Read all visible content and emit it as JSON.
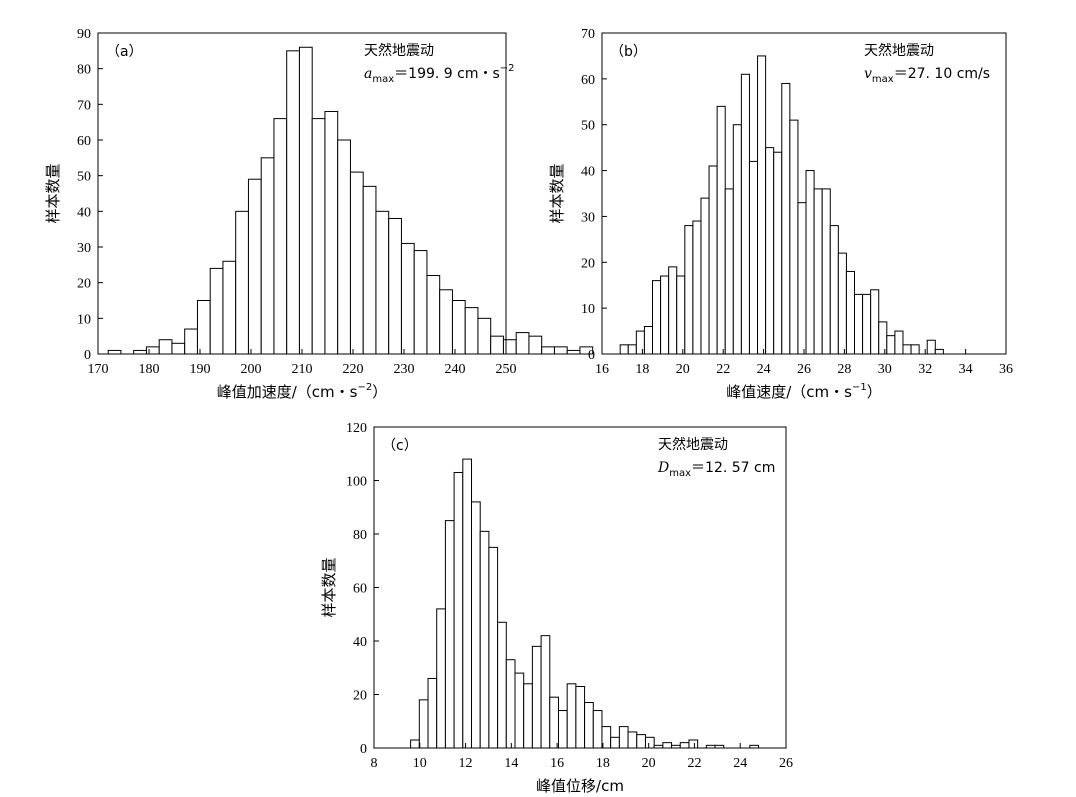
{
  "chart_data": [
    {
      "type": "bar",
      "panel_label": "（a）",
      "annotation_title": "天然地震动",
      "annotation_symbol": "a",
      "annotation_subscript": "max",
      "annotation_value": "＝199. 9  cm・s",
      "annotation_exponent": "−2",
      "xlabel": "峰值加速度/（cm・s",
      "xlabel_exponent": "−2",
      "xlabel_close": "）",
      "ylabel": "样本数量",
      "xlim": [
        170,
        250
      ],
      "ylim": [
        0,
        90
      ],
      "xticks": [
        170,
        180,
        190,
        200,
        210,
        220,
        230,
        240,
        250
      ],
      "yticks": [
        0,
        10,
        20,
        30,
        40,
        50,
        60,
        70,
        80,
        90
      ],
      "bin_start": 172,
      "bin_width": 2.5,
      "values": [
        1,
        0,
        1,
        2,
        4,
        3,
        7,
        15,
        24,
        26,
        40,
        49,
        55,
        66,
        85,
        86,
        66,
        68,
        60,
        51,
        47,
        40,
        38,
        31,
        29,
        22,
        18,
        15,
        13,
        10,
        5,
        4,
        6,
        5,
        2,
        2,
        1,
        2
      ]
    },
    {
      "type": "bar",
      "panel_label": "（b）",
      "annotation_title": "天然地震动",
      "annotation_symbol": "v",
      "annotation_subscript": "max",
      "annotation_value": "＝27. 10  cm/s",
      "annotation_exponent": "",
      "xlabel": "峰值速度/（cm・s",
      "xlabel_exponent": "−1",
      "xlabel_close": "）",
      "ylabel": "样本数量",
      "xlim": [
        16,
        36
      ],
      "ylim": [
        0,
        70
      ],
      "xticks": [
        16,
        18,
        20,
        22,
        24,
        26,
        28,
        30,
        32,
        34,
        36
      ],
      "yticks": [
        0,
        10,
        20,
        30,
        40,
        50,
        60,
        70
      ],
      "bin_start": 16.9,
      "bin_width": 0.4,
      "values": [
        2,
        2,
        5,
        6,
        16,
        17,
        19,
        17,
        28,
        29,
        34,
        41,
        54,
        36,
        50,
        61,
        42,
        65,
        45,
        44,
        59,
        51,
        33,
        40,
        36,
        36,
        28,
        22,
        18,
        13,
        13,
        14,
        7,
        4,
        5,
        2,
        2,
        0,
        3,
        1
      ]
    },
    {
      "type": "bar",
      "panel_label": "（c）",
      "annotation_title": "天然地震动",
      "annotation_symbol": "D",
      "annotation_subscript": "max",
      "annotation_value": "＝12. 57  cm",
      "annotation_exponent": "",
      "xlabel": "峰值位移/cm",
      "xlabel_exponent": "",
      "xlabel_close": "",
      "ylabel": "样本数量",
      "xlim": [
        8,
        26
      ],
      "ylim": [
        0,
        120
      ],
      "xticks": [
        8,
        10,
        12,
        14,
        16,
        18,
        20,
        22,
        24,
        26
      ],
      "yticks": [
        0,
        20,
        40,
        60,
        80,
        100,
        120
      ],
      "bin_start": 9.6,
      "bin_width": 0.38,
      "values": [
        3,
        18,
        26,
        52,
        85,
        103,
        108,
        92,
        81,
        75,
        47,
        33,
        28,
        24,
        38,
        42,
        19,
        14,
        24,
        23,
        17,
        14,
        8,
        4,
        8,
        6,
        5,
        4,
        1,
        2,
        1,
        2,
        3,
        0,
        1,
        1,
        0,
        0,
        0,
        1
      ]
    }
  ]
}
